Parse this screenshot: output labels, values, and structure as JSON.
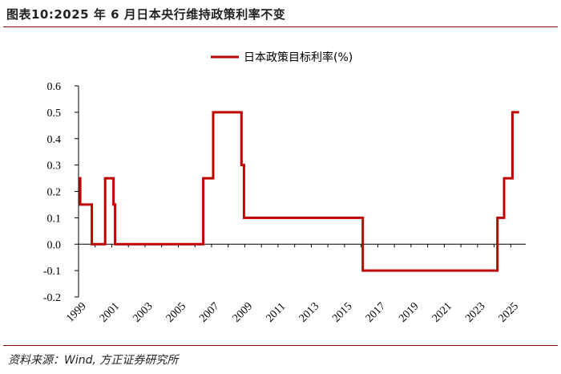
{
  "header": {
    "title": "图表10:2025 年 6 月日本央行维持政策利率不变"
  },
  "footer": {
    "source": "资料来源：Wind, 方正证券研究所"
  },
  "colors": {
    "series": "#c00000",
    "accent_rule": "#8b0000"
  },
  "chart_data": {
    "type": "line",
    "title": "",
    "xlabel": "",
    "ylabel": "",
    "ylim": [
      -0.2,
      0.6
    ],
    "yticks": [
      -0.2,
      -0.1,
      0.0,
      0.1,
      0.2,
      0.3,
      0.4,
      0.5,
      0.6
    ],
    "ytick_labels": [
      "-0.2",
      "-0.1",
      "0.0",
      "0.1",
      "0.2",
      "0.3",
      "0.4",
      "0.5",
      "0.6"
    ],
    "xlim": [
      1999.0,
      2025.9
    ],
    "xticks": [
      1999,
      2001,
      2003,
      2005,
      2007,
      2009,
      2011,
      2013,
      2015,
      2017,
      2019,
      2021,
      2023,
      2025
    ],
    "xtick_labels": [
      "1999",
      "2001",
      "2003",
      "2005",
      "2007",
      "2009",
      "2011",
      "2013",
      "2015",
      "2017",
      "2019",
      "2021",
      "2023",
      "2025"
    ],
    "legend_position": "top-right",
    "grid": false,
    "series": [
      {
        "name": "日本政策目标利率(%)",
        "step": true,
        "points": [
          [
            1999.0,
            0.25
          ],
          [
            1999.1,
            0.15
          ],
          [
            1999.8,
            0.0
          ],
          [
            2000.6,
            0.25
          ],
          [
            2001.1,
            0.15
          ],
          [
            2001.2,
            0.0
          ],
          [
            2006.5,
            0.25
          ],
          [
            2007.1,
            0.5
          ],
          [
            2008.8,
            0.3
          ],
          [
            2008.95,
            0.1
          ],
          [
            2016.1,
            -0.1
          ],
          [
            2024.2,
            0.1
          ],
          [
            2024.6,
            0.25
          ],
          [
            2025.1,
            0.5
          ],
          [
            2025.5,
            0.5
          ]
        ]
      }
    ]
  }
}
